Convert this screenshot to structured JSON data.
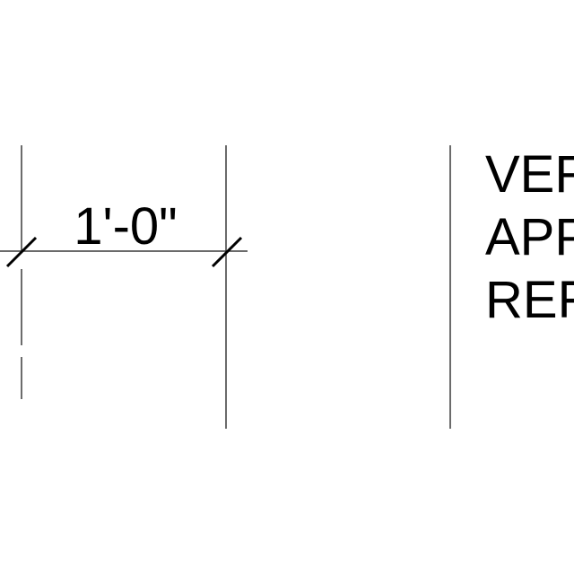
{
  "dimension": {
    "label": "1'-0\""
  },
  "note": {
    "lines": [
      "VER",
      "APP",
      "REF"
    ]
  },
  "colors": {
    "line": "#3a3a3a",
    "text": "#000000",
    "background": "#ffffff"
  }
}
